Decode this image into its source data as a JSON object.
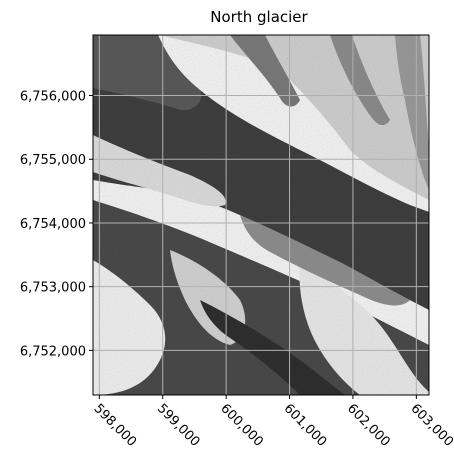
{
  "figure": {
    "title": "North glacier"
  },
  "map": {
    "type": "raster",
    "colormap": "grayscale",
    "grid": true,
    "x_ticks": [
      598000,
      599000,
      600000,
      601000,
      602000,
      603000
    ],
    "x_tick_labels": [
      "598,000",
      "599,000",
      "600,000",
      "601,000",
      "602,000",
      "603,000"
    ],
    "y_ticks": [
      6752000,
      6753000,
      6754000,
      6755000,
      6756000
    ],
    "y_tick_labels": [
      "6,752,000",
      "6,753,000",
      "6,754,000",
      "6,755,000",
      "6,756,000"
    ],
    "x_range": [
      597900,
      603200
    ],
    "y_range": [
      6751300,
      6756950
    ]
  },
  "colors": {
    "dark_band": "#3c3c3c",
    "mid_band": "#6b6b6b",
    "light_band": "#e6e6e6",
    "snow": "#f7f7f7",
    "grid": "#b0b0b0"
  }
}
